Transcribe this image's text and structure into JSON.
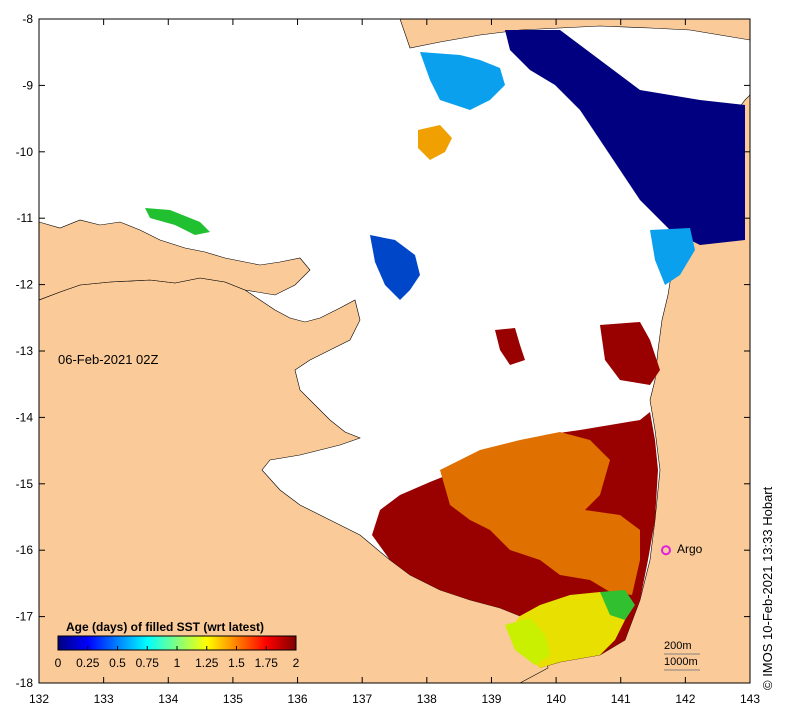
{
  "map": {
    "date_label": "06-Feb-2021 02Z",
    "credit": "© IMOS 10-Feb-2021 13:33 Hobart",
    "argo_label": "Argo",
    "depth_200": "200m",
    "depth_1000": "1000m",
    "lon_ticks": [
      "132",
      "133",
      "134",
      "135",
      "136",
      "137",
      "138",
      "139",
      "140",
      "141",
      "142",
      "143"
    ],
    "lat_ticks": [
      "-8",
      "-9",
      "-10",
      "-11",
      "-12",
      "-13",
      "-14",
      "-15",
      "-16",
      "-17",
      "-18"
    ],
    "lon_range": [
      132,
      143
    ],
    "lat_range": [
      -18,
      -8
    ],
    "argo_position": {
      "lon": 141.7,
      "lat": -16.0
    },
    "colors": {
      "land": "#fbca99",
      "ocean_nodata": "#ffffff",
      "argo": "#e020e0",
      "old": "#990000",
      "very_old": "#cc2200"
    }
  },
  "colorbar": {
    "title": "Age (days) of filled SST (wrt latest)",
    "tick_labels": [
      "0",
      "0.25",
      "0.5",
      "0.75",
      "1",
      "1.25",
      "1.5",
      "1.75",
      "2"
    ],
    "range": [
      0,
      2
    ],
    "stops": [
      "#00007f",
      "#0000ff",
      "#0080ff",
      "#00ffff",
      "#80ff80",
      "#ffff00",
      "#ff8000",
      "#ff0000",
      "#7f0000"
    ]
  }
}
